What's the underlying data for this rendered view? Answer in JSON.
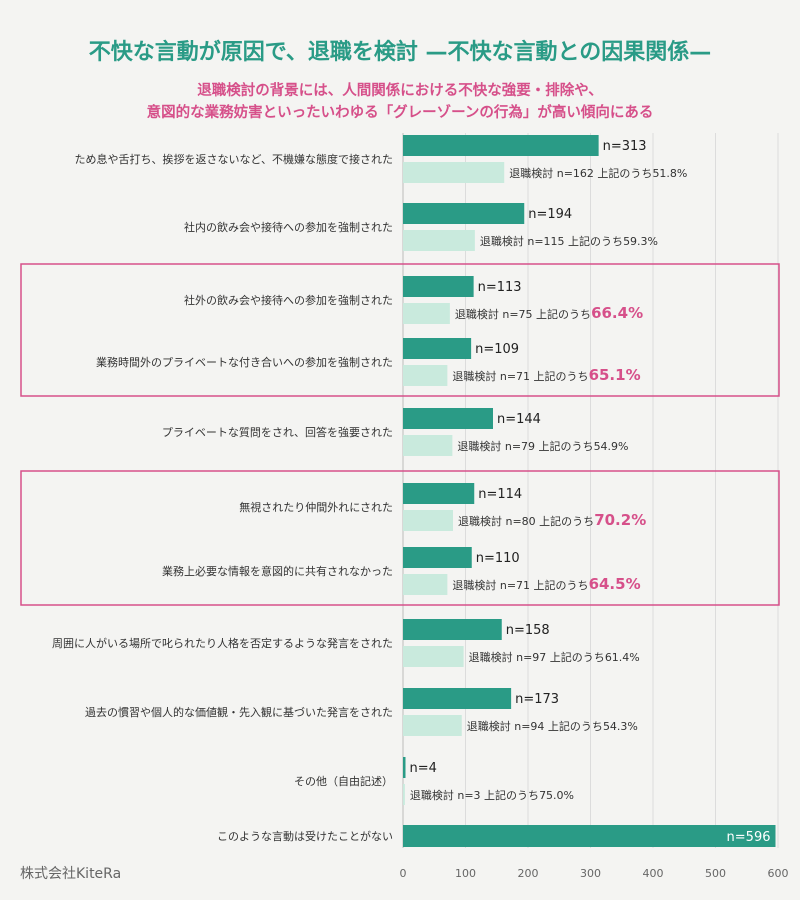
{
  "header": {
    "title": "不快な言動が原因で、退職を検討 —不快な言動との因果関係—",
    "subtitle_line1": "退職検討の背景には、人間関係における不快な強要・排除や、",
    "subtitle_line2": "意図的な業務妨害といったいわゆる「グレーゾーンの行為」が高い傾向にある"
  },
  "footer": {
    "company": "株式会社KiteRa"
  },
  "colors": {
    "total_bar": "#2a9b86",
    "consider_bar": "#c9eadd",
    "highlight_text": "#d6508a",
    "highlight_box": "#d6508a",
    "grid": "#dcdcdc"
  },
  "chart_data": {
    "type": "bar",
    "orientation": "horizontal",
    "xlim": [
      0,
      600
    ],
    "x_ticks": [
      0,
      100,
      200,
      300,
      400,
      500,
      600
    ],
    "grid": true,
    "highlight_groups": [
      [
        2,
        3
      ],
      [
        5,
        6
      ]
    ],
    "categories": [
      {
        "label": "ため息や舌打ち、挨拶を返さないなど、不機嫌な態度で接された",
        "n": 313,
        "n_label": "n=313",
        "consider": 162,
        "consider_label": "退職検討 n=162 上記のうち",
        "pct_label": "51.8%",
        "highlight": false
      },
      {
        "label": "社内の飲み会や接待への参加を強制された",
        "n": 194,
        "n_label": "n=194",
        "consider": 115,
        "consider_label": "退職検討 n=115 上記のうち",
        "pct_label": "59.3%",
        "highlight": false
      },
      {
        "label": "社外の飲み会や接待への参加を強制された",
        "n": 113,
        "n_label": "n=113",
        "consider": 75,
        "consider_label": "退職検討 n=75 上記のうち",
        "pct_label": "66.4%",
        "highlight": true
      },
      {
        "label": "業務時間外のプライベートな付き合いへの参加を強制された",
        "n": 109,
        "n_label": "n=109",
        "consider": 71,
        "consider_label": "退職検討 n=71 上記のうち",
        "pct_label": "65.1%",
        "highlight": true
      },
      {
        "label": "プライベートな質問をされ、回答を強要された",
        "n": 144,
        "n_label": "n=144",
        "consider": 79,
        "consider_label": "退職検討 n=79 上記のうち",
        "pct_label": "54.9%",
        "highlight": false
      },
      {
        "label": "無視されたり仲間外れにされた",
        "n": 114,
        "n_label": "n=114",
        "consider": 80,
        "consider_label": "退職検討 n=80 上記のうち",
        "pct_label": "70.2%",
        "highlight": true
      },
      {
        "label": "業務上必要な情報を意図的に共有されなかった",
        "n": 110,
        "n_label": "n=110",
        "consider": 71,
        "consider_label": "退職検討 n=71 上記のうち",
        "pct_label": "64.5%",
        "highlight": true
      },
      {
        "label": "周囲に人がいる場所で叱られたり人格を否定するような発言をされた",
        "n": 158,
        "n_label": "n=158",
        "consider": 97,
        "consider_label": "退職検討 n=97 上記のうち",
        "pct_label": "61.4%",
        "highlight": false
      },
      {
        "label": "過去の慣習や個人的な価値観・先入観に基づいた発言をされた",
        "n": 173,
        "n_label": "n=173",
        "consider": 94,
        "consider_label": "退職検討 n=94 上記のうち",
        "pct_label": "54.3%",
        "highlight": false
      },
      {
        "label": "その他（自由記述）",
        "n": 4,
        "n_label": "n=4",
        "consider": 3,
        "consider_label": "退職検討 n=3 上記のうち",
        "pct_label": "75.0%",
        "highlight": false
      },
      {
        "label": "このような言動は受けたことがない",
        "n": 596,
        "n_label": "n=596",
        "consider": null,
        "consider_label": "",
        "pct_label": "",
        "highlight": false
      }
    ]
  }
}
